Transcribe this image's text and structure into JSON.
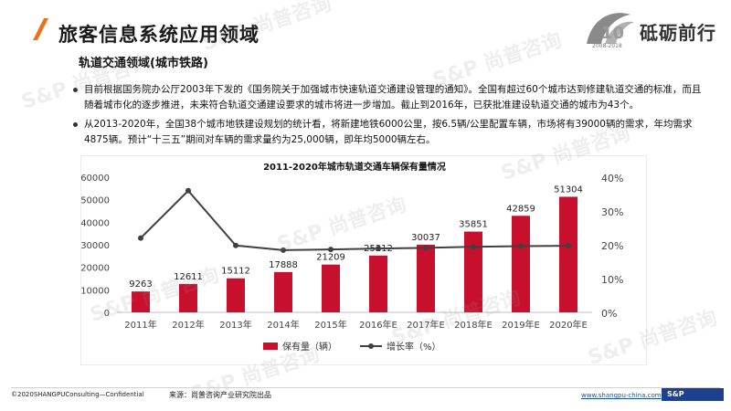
{
  "header": {
    "title": "旅客信息系统应用领域",
    "subtitle": "轨道交通领域(城市铁路)",
    "logo_text": "砥砺前行",
    "logo_years": "2008-2018"
  },
  "bullets": [
    "目前根据国务院办公厅2003年下发的《国务院关于加强城市快速轨道交通建设管理的通知》。全国有超过60个城市达到修建轨道交通的标准，而且随着城市化的逐步推进，未来符合轨道交通建设要求的城市将进一步增加。截止到2016年，已获批准建设轨道交通的城市为43个。",
    "从2013-2020年，全国38个城市地铁建设规划的统计看，将新建地铁6000公里，按6.5辆/公里配置车辆，市场将有39000辆的需求，年均需求4875辆。预计“十三五”期间对车辆的需求量约为25,000辆，即年均5000辆左右。"
  ],
  "watermark": "S&P 尚普咨询",
  "chart_data": {
    "type": "bar",
    "title": "2011-2020年城市轨道交通车辆保有量情况",
    "categories": [
      "2011年",
      "2012年",
      "2013年",
      "2014年",
      "2015年",
      "2016年E",
      "2017年E",
      "2018年E",
      "2019年E",
      "2020年E"
    ],
    "series": [
      {
        "name": "保有量（辆）",
        "type": "bar",
        "axis": "left",
        "color": "#c8102e",
        "values": [
          9263,
          12611,
          15112,
          17888,
          21209,
          25212,
          30037,
          35851,
          42859,
          51304
        ]
      },
      {
        "name": "增长率（%）",
        "type": "line",
        "axis": "right",
        "color": "#404040",
        "values": [
          22,
          36,
          19.8,
          18.4,
          18.6,
          18.9,
          19.1,
          19.4,
          19.6,
          19.7
        ]
      }
    ],
    "y_left": {
      "min": 0,
      "max": 60000,
      "ticks": [
        0,
        10000,
        20000,
        30000,
        40000,
        50000,
        60000
      ]
    },
    "y_right": {
      "min": 0,
      "max": 40,
      "ticks": [
        "0%",
        "10%",
        "20%",
        "30%",
        "40%"
      ]
    },
    "legend_position": "bottom",
    "grid": false
  },
  "footer": {
    "copyright": "©2020SHANGPUConsulting—Confidential",
    "source": "来源：尚普咨询产业研究院出品",
    "url": "www.shangpu-china.com",
    "badge": "S&P"
  }
}
